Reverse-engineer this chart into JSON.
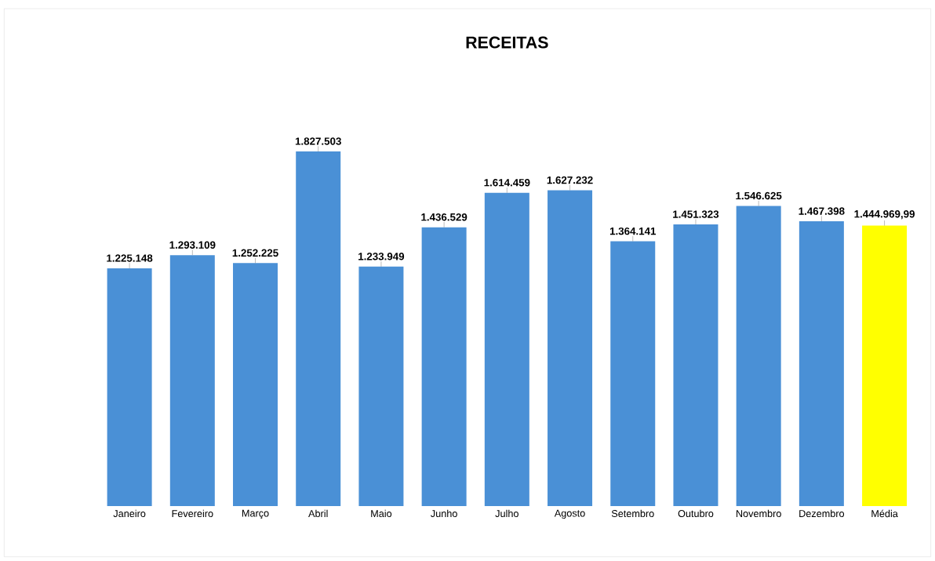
{
  "chart_data": {
    "type": "bar",
    "title": "RECEITAS",
    "categories": [
      "Janeiro",
      "Fevereiro",
      "Março",
      "Abril",
      "Maio",
      "Junho",
      "Julho",
      "Agosto",
      "Setembro",
      "Outubro",
      "Novembro",
      "Dezembro",
      "Média"
    ],
    "values": [
      1225148,
      1293109,
      1252225,
      1827503,
      1233949,
      1436529,
      1614459,
      1627232,
      1364141,
      1451323,
      1546625,
      1467398,
      1444969.99
    ],
    "value_labels": [
      "1.225.148",
      "1.293.109",
      "1.252.225",
      "1.827.503",
      "1.233.949",
      "1.436.529",
      "1.614.459",
      "1.627.232",
      "1.364.141",
      "1.451.323",
      "1.546.625",
      "1.467.398",
      "1.444.969,99"
    ],
    "colors": [
      "#4a90d6",
      "#4a90d6",
      "#4a90d6",
      "#4a90d6",
      "#4a90d6",
      "#4a90d6",
      "#4a90d6",
      "#4a90d6",
      "#4a90d6",
      "#4a90d6",
      "#4a90d6",
      "#4a90d6",
      "#ffff00"
    ]
  }
}
